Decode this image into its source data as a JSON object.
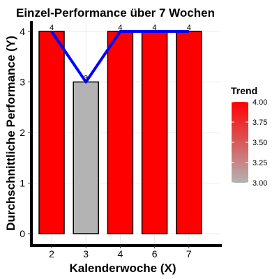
{
  "chart_data": {
    "type": "bar",
    "title": "Einzel-Performance über 7 Wochen",
    "xlabel": "Kalenderwoche (X)",
    "ylabel": "Durchschnittliche Performance (Y)",
    "categories": [
      "2",
      "3",
      "4",
      "6",
      "7"
    ],
    "values": [
      4,
      3,
      4,
      4,
      4
    ],
    "data_labels": [
      "4",
      "3",
      "4",
      "4",
      "4"
    ],
    "ylim": [
      0,
      4.15
    ],
    "yticks": [
      0,
      1,
      2,
      3,
      4
    ],
    "grid": true,
    "line_overlay": {
      "values": [
        4,
        3,
        4,
        4,
        4
      ],
      "color": "#0000ff"
    },
    "legend": {
      "title": "Trend",
      "position": "right",
      "type": "colorbar",
      "range": [
        3.0,
        4.0
      ],
      "ticks": [
        "3.00",
        "3.25",
        "3.50",
        "3.75",
        "4.00"
      ],
      "low_color": "#b3b3b3",
      "high_color": "#ff0000"
    },
    "colors": {
      "high": "#ff0000",
      "low": "#b3b3b3",
      "line": "#0000ff"
    }
  }
}
